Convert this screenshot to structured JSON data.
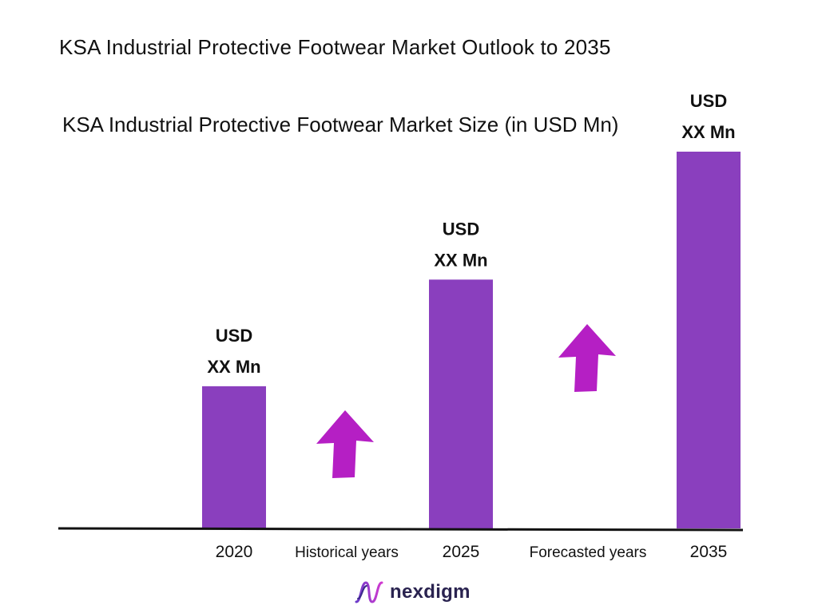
{
  "title": "KSA Industrial Protective Footwear Market Outlook to 2035",
  "subtitle": "KSA Industrial Protective Footwear Market Size (in USD Mn)",
  "chart_data": {
    "type": "bar",
    "categories": [
      "2020",
      "2025",
      "2035"
    ],
    "values": [
      100,
      175,
      265
    ],
    "value_labels": [
      [
        "USD",
        "XX Mn"
      ],
      [
        "USD",
        "XX Mn"
      ],
      [
        "USD",
        "XX Mn"
      ]
    ],
    "period_labels": [
      "Historical years",
      "Forecasted years"
    ],
    "bar_color": "#8a3fbe",
    "arrow_color": "#b51fc4",
    "xlabel": "",
    "ylabel": "",
    "grid": false
  },
  "logo": {
    "text": "nexdigm",
    "icon": "nexdigm-wave-icon"
  }
}
